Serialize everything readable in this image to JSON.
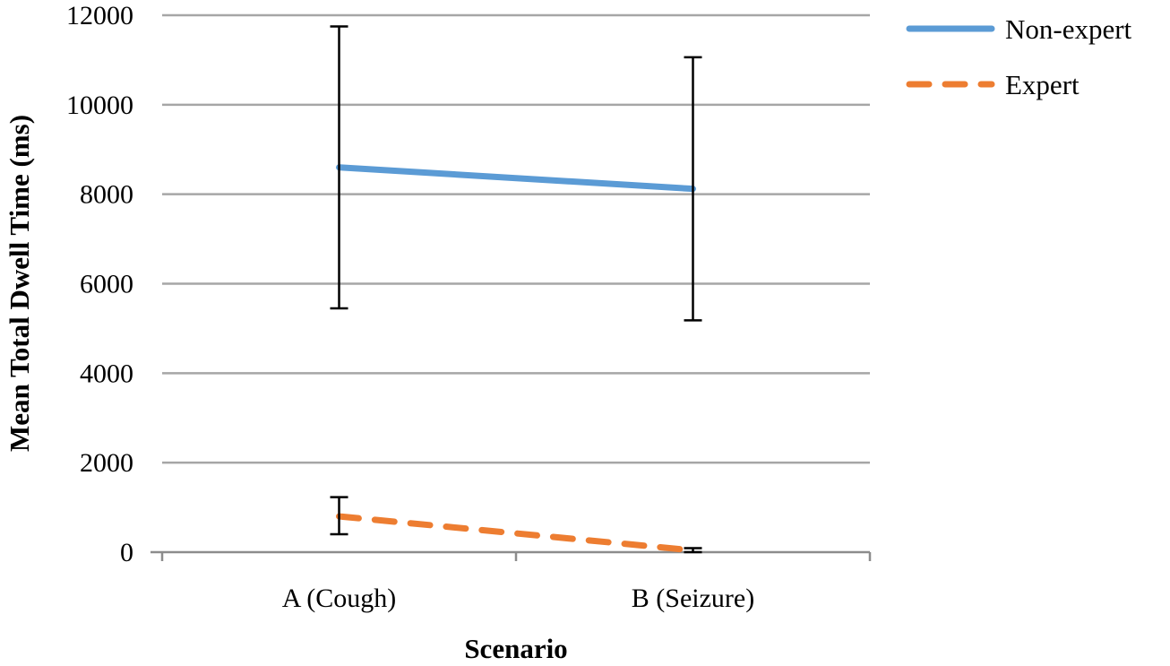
{
  "chart_data": {
    "type": "line",
    "title": "",
    "xlabel": "Scenario",
    "ylabel": "Mean Total Dwell Time (ms)",
    "categories": [
      "A (Cough)",
      "B (Seizure)"
    ],
    "ylim": [
      0,
      12000
    ],
    "yticks": [
      0,
      2000,
      4000,
      6000,
      8000,
      10000,
      12000
    ],
    "grid": true,
    "legend_position": "top-right",
    "series": [
      {
        "name": "Non-expert",
        "values": [
          8600,
          8120
        ],
        "error_low": [
          5450,
          5180
        ],
        "error_high": [
          11750,
          11060
        ],
        "color": "#5b9bd5",
        "line_style": "solid"
      },
      {
        "name": "Expert",
        "values": [
          800,
          40
        ],
        "error_low": [
          400,
          0
        ],
        "error_high": [
          1230,
          90
        ],
        "color": "#ed7d31",
        "line_style": "dashed"
      }
    ]
  }
}
